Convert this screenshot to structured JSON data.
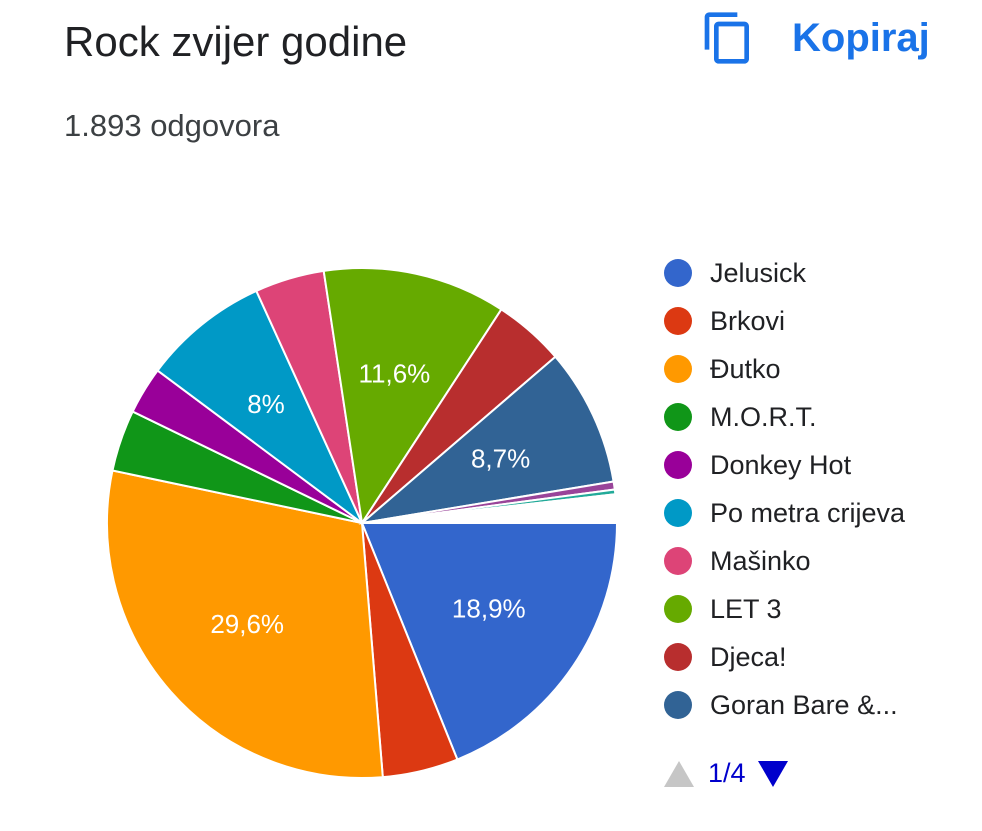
{
  "header": {
    "title": "Rock zvijer godine",
    "copy_label": "Kopiraj",
    "copy_icon": "copy-icon",
    "response_count": "1.893 odgovora"
  },
  "chart_data": {
    "type": "pie",
    "title": "Rock zvijer godine",
    "legend_position": "right",
    "slices": [
      {
        "label": "Jelusick",
        "value": 18.9,
        "color": "#3366cc",
        "shown_label": "18,9%"
      },
      {
        "label": "Brkovi",
        "value": 4.8,
        "color": "#dc3912",
        "shown_label": ""
      },
      {
        "label": "Đutko",
        "value": 29.6,
        "color": "#ff9900",
        "shown_label": "29,6%"
      },
      {
        "label": "M.O.R.T.",
        "value": 3.9,
        "color": "#109618",
        "shown_label": ""
      },
      {
        "label": "Donkey Hot",
        "value": 3.0,
        "color": "#990099",
        "shown_label": ""
      },
      {
        "label": "Po metra crijeva",
        "value": 8.0,
        "color": "#0099c6",
        "shown_label": "8%"
      },
      {
        "label": "Mašinko",
        "value": 4.4,
        "color": "#dd4477",
        "shown_label": ""
      },
      {
        "label": "LET 3",
        "value": 11.6,
        "color": "#66aa00",
        "shown_label": "11,6%"
      },
      {
        "label": "Djeca!",
        "value": 4.5,
        "color": "#b82e2e",
        "shown_label": ""
      },
      {
        "label": "Goran Bare &...",
        "value": 8.7,
        "color": "#316395",
        "shown_label": "8,7%"
      },
      {
        "label": "",
        "value": 0.5,
        "color": "#994499",
        "shown_label": ""
      },
      {
        "label": "",
        "value": 0.3,
        "color": "#22aa99",
        "shown_label": ""
      },
      {
        "label": "",
        "value": 1.8,
        "color": "#ffffff",
        "shown_label": ""
      }
    ]
  },
  "legend": {
    "items": [
      {
        "label": "Jelusick",
        "color": "#3366cc"
      },
      {
        "label": "Brkovi",
        "color": "#dc3912"
      },
      {
        "label": "Đutko",
        "color": "#ff9900"
      },
      {
        "label": "M.O.R.T.",
        "color": "#109618"
      },
      {
        "label": "Donkey Hot",
        "color": "#990099"
      },
      {
        "label": "Po metra crijeva",
        "color": "#0099c6"
      },
      {
        "label": "Mašinko",
        "color": "#dd4477"
      },
      {
        "label": "LET 3",
        "color": "#66aa00"
      },
      {
        "label": "Djeca!",
        "color": "#b82e2e"
      },
      {
        "label": "Goran Bare &...",
        "color": "#316395"
      }
    ],
    "pager_text": "1/4"
  }
}
